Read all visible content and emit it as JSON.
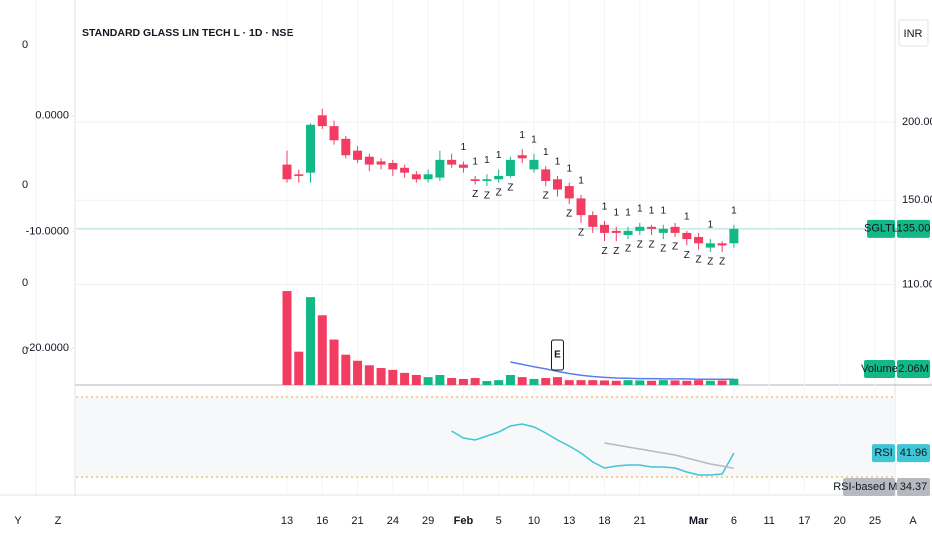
{
  "chart_data": [
    {
      "type": "candlestick",
      "title": "STANDARD GLASS LIN TECH L · 1D · NSE",
      "currency": "INR",
      "categories": [
        "13",
        null,
        null,
        "16",
        null,
        null,
        "21",
        null,
        null,
        "24",
        null,
        null,
        "29",
        null,
        null,
        "Feb",
        null,
        null,
        "5",
        null,
        null,
        "10",
        null,
        null,
        "13",
        null,
        null,
        "18",
        null,
        null,
        "21",
        null,
        null,
        null,
        null,
        "Mar",
        null,
        null,
        "6",
        null,
        null,
        "11",
        null,
        null,
        "17",
        null,
        null,
        "20",
        null,
        null,
        "25"
      ],
      "open": [
        171,
        165,
        166,
        205,
        197,
        188,
        180,
        176,
        173,
        172,
        169,
        165,
        162,
        163,
        174,
        171,
        162,
        161,
        162,
        164,
        177,
        168,
        168,
        162,
        158,
        151,
        142,
        137,
        134,
        132,
        134,
        136,
        133,
        136,
        133,
        131,
        126,
        128,
        128,
        null,
        null,
        null,
        null,
        null,
        null,
        null,
        null,
        null,
        null,
        null,
        null
      ],
      "high": [
        180,
        168,
        199,
        210,
        201,
        190,
        183,
        178,
        175,
        174,
        171,
        167,
        168,
        180,
        178,
        173,
        164,
        165,
        168,
        176,
        181,
        178,
        170,
        164,
        160,
        153,
        144,
        139,
        136,
        136,
        138,
        137,
        137,
        138,
        134,
        133,
        130,
        129,
        137,
        null,
        null,
        null,
        null,
        null,
        null,
        null,
        null,
        null,
        null,
        null,
        null
      ],
      "low": [
        160,
        160,
        160,
        195,
        184,
        175,
        172,
        167,
        168,
        164,
        163,
        160,
        160,
        161,
        169,
        166,
        159,
        158,
        160,
        163,
        172,
        166,
        158,
        152,
        148,
        138,
        133,
        129,
        129,
        130,
        132,
        132,
        130,
        131,
        127,
        125,
        124,
        124,
        126,
        null,
        null,
        null,
        null,
        null,
        null,
        null,
        null,
        null,
        null,
        null,
        null
      ],
      "close": [
        162,
        164,
        198,
        197,
        187,
        177,
        174,
        171,
        171,
        168,
        166,
        162,
        165,
        174,
        171,
        169,
        161,
        162,
        164,
        174,
        175,
        174,
        161,
        156,
        151,
        142,
        136,
        133,
        133,
        134,
        136,
        135,
        135,
        133,
        130,
        128,
        128,
        127,
        135,
        null,
        null,
        null,
        null,
        null,
        null,
        null,
        null,
        null,
        null,
        null,
        null
      ],
      "up_color": "#12b886",
      "down_color": "#f23c62",
      "log_scale": true,
      "grid": true,
      "ylim": [
        76,
        302
      ],
      "yticks": [
        {
          "value": 200,
          "label": "200.00"
        },
        {
          "value": 150,
          "label": "150.00"
        },
        {
          "value": 110,
          "label": "110.00"
        }
      ],
      "last_price": {
        "symbol": "SGLTL",
        "value": 135,
        "label": "135.00",
        "line_color": "#a8dfd3"
      },
      "signals_above": [
        null,
        null,
        null,
        null,
        null,
        null,
        null,
        null,
        null,
        null,
        null,
        null,
        null,
        null,
        null,
        "1",
        "1",
        "1",
        "1",
        null,
        "1",
        "1",
        "1",
        "1",
        "1",
        "1",
        null,
        "1",
        "1",
        "1",
        "1",
        "1",
        "1",
        null,
        "1",
        null,
        "1",
        null,
        "1",
        null,
        null,
        null,
        null,
        null,
        null,
        null,
        null,
        null,
        null,
        null,
        null
      ],
      "signals_below": [
        null,
        null,
        null,
        null,
        null,
        null,
        null,
        null,
        null,
        null,
        null,
        null,
        null,
        null,
        null,
        null,
        "Z",
        "Z",
        "Z",
        "Z",
        null,
        null,
        "Z",
        null,
        "Z",
        "Z",
        null,
        "Z",
        "Z",
        "Z",
        "Z",
        "Z",
        "Z",
        "Z",
        "Z",
        "Z",
        "Z",
        "Z",
        null,
        null,
        null,
        null,
        null,
        null,
        null,
        null,
        null,
        null,
        null,
        null,
        null
      ],
      "left_axis": {
        "lim": [
          9.1,
          -23.2
        ],
        "ticks": [
          {
            "value": 0,
            "label": "0.0000"
          },
          {
            "value": -10,
            "label": "-10.0000"
          },
          {
            "value": -20,
            "label": "-20.0000"
          }
        ]
      },
      "outer_left_labels": [
        "0",
        "0",
        "0",
        "0"
      ],
      "footer_left": [
        "Y",
        "Z"
      ],
      "footer_right": "A"
    },
    {
      "type": "bar",
      "name": "Volume",
      "color": "#12b886",
      "ylim": [
        0,
        33
      ],
      "values": [
        31,
        11,
        29,
        23,
        15,
        10,
        8,
        6.5,
        5.6,
        5,
        4,
        3.3,
        2.6,
        3.3,
        2.3,
        2,
        2.3,
        1.3,
        1.6,
        3.3,
        2.6,
        2,
        2.3,
        2.6,
        1.6,
        1.6,
        1.6,
        1.5,
        1.4,
        1.6,
        1.5,
        1.4,
        1.6,
        1.5,
        1.4,
        1.6,
        1.4,
        1.5,
        2.06,
        null,
        null,
        null,
        null,
        null,
        null,
        null,
        null,
        null,
        null,
        null,
        null
      ],
      "value_labels": [
        null,
        null,
        null,
        null,
        null,
        null,
        null,
        null,
        null,
        null,
        null,
        null,
        null,
        null,
        null,
        null,
        null,
        null,
        null,
        null,
        null,
        null,
        null,
        null,
        null,
        null,
        null,
        null,
        null,
        null,
        null,
        null,
        null,
        null,
        null,
        null,
        null,
        null,
        "2.06M",
        null,
        null,
        null,
        null,
        null,
        null,
        null,
        null,
        null,
        null,
        null,
        null
      ],
      "ma": [
        null,
        null,
        null,
        null,
        null,
        null,
        null,
        null,
        null,
        null,
        null,
        null,
        null,
        null,
        null,
        null,
        null,
        null,
        null,
        7.6,
        6.8,
        6.0,
        5.3,
        4.5,
        3.8,
        3.2,
        2.8,
        2.5,
        2.3,
        2.2,
        2.1,
        2.1,
        2.0,
        2.0,
        2.0,
        1.9,
        1.9,
        1.9,
        1.9,
        null,
        null,
        null,
        null,
        null,
        null,
        null,
        null,
        null,
        null,
        null,
        null
      ],
      "ma_color": "#5b7cf0",
      "events": [
        null,
        null,
        null,
        null,
        null,
        null,
        null,
        null,
        null,
        null,
        null,
        null,
        null,
        null,
        null,
        null,
        null,
        null,
        null,
        null,
        null,
        null,
        null,
        "E",
        null,
        null,
        null,
        null,
        null,
        null,
        null,
        null,
        null,
        null,
        null,
        null,
        null,
        null,
        null,
        null,
        null,
        null,
        null,
        null,
        null,
        null,
        null,
        null,
        null,
        null,
        null
      ]
    },
    {
      "type": "line",
      "ylim": [
        23.5,
        76
      ],
      "hlines": [
        70,
        30
      ],
      "hline_color": "#f5a623",
      "series": [
        {
          "name": "RSI",
          "color": "#3ec6d6",
          "values": [
            null,
            null,
            null,
            null,
            null,
            null,
            null,
            null,
            null,
            null,
            null,
            null,
            null,
            null,
            53,
            49.5,
            48.5,
            50.5,
            52.5,
            55.5,
            56.5,
            55,
            52,
            48.5,
            45.5,
            42,
            37.5,
            34.5,
            35.5,
            36,
            36,
            35,
            35,
            34.5,
            32.5,
            31,
            31,
            31.5,
            41.96,
            null,
            null,
            null,
            null,
            null,
            null,
            null,
            null,
            null,
            null,
            null,
            null
          ]
        },
        {
          "name": "RSI-based MA",
          "color": "#b7b9c0",
          "values": [
            null,
            null,
            null,
            null,
            null,
            null,
            null,
            null,
            null,
            null,
            null,
            null,
            null,
            null,
            null,
            null,
            null,
            null,
            null,
            null,
            null,
            null,
            null,
            null,
            null,
            null,
            null,
            47,
            46,
            45,
            44,
            43,
            42,
            41,
            39.5,
            38,
            36.5,
            35.5,
            34.37,
            null,
            null,
            null,
            null,
            null,
            null,
            null,
            null,
            null,
            null,
            null,
            null
          ]
        }
      ]
    }
  ]
}
